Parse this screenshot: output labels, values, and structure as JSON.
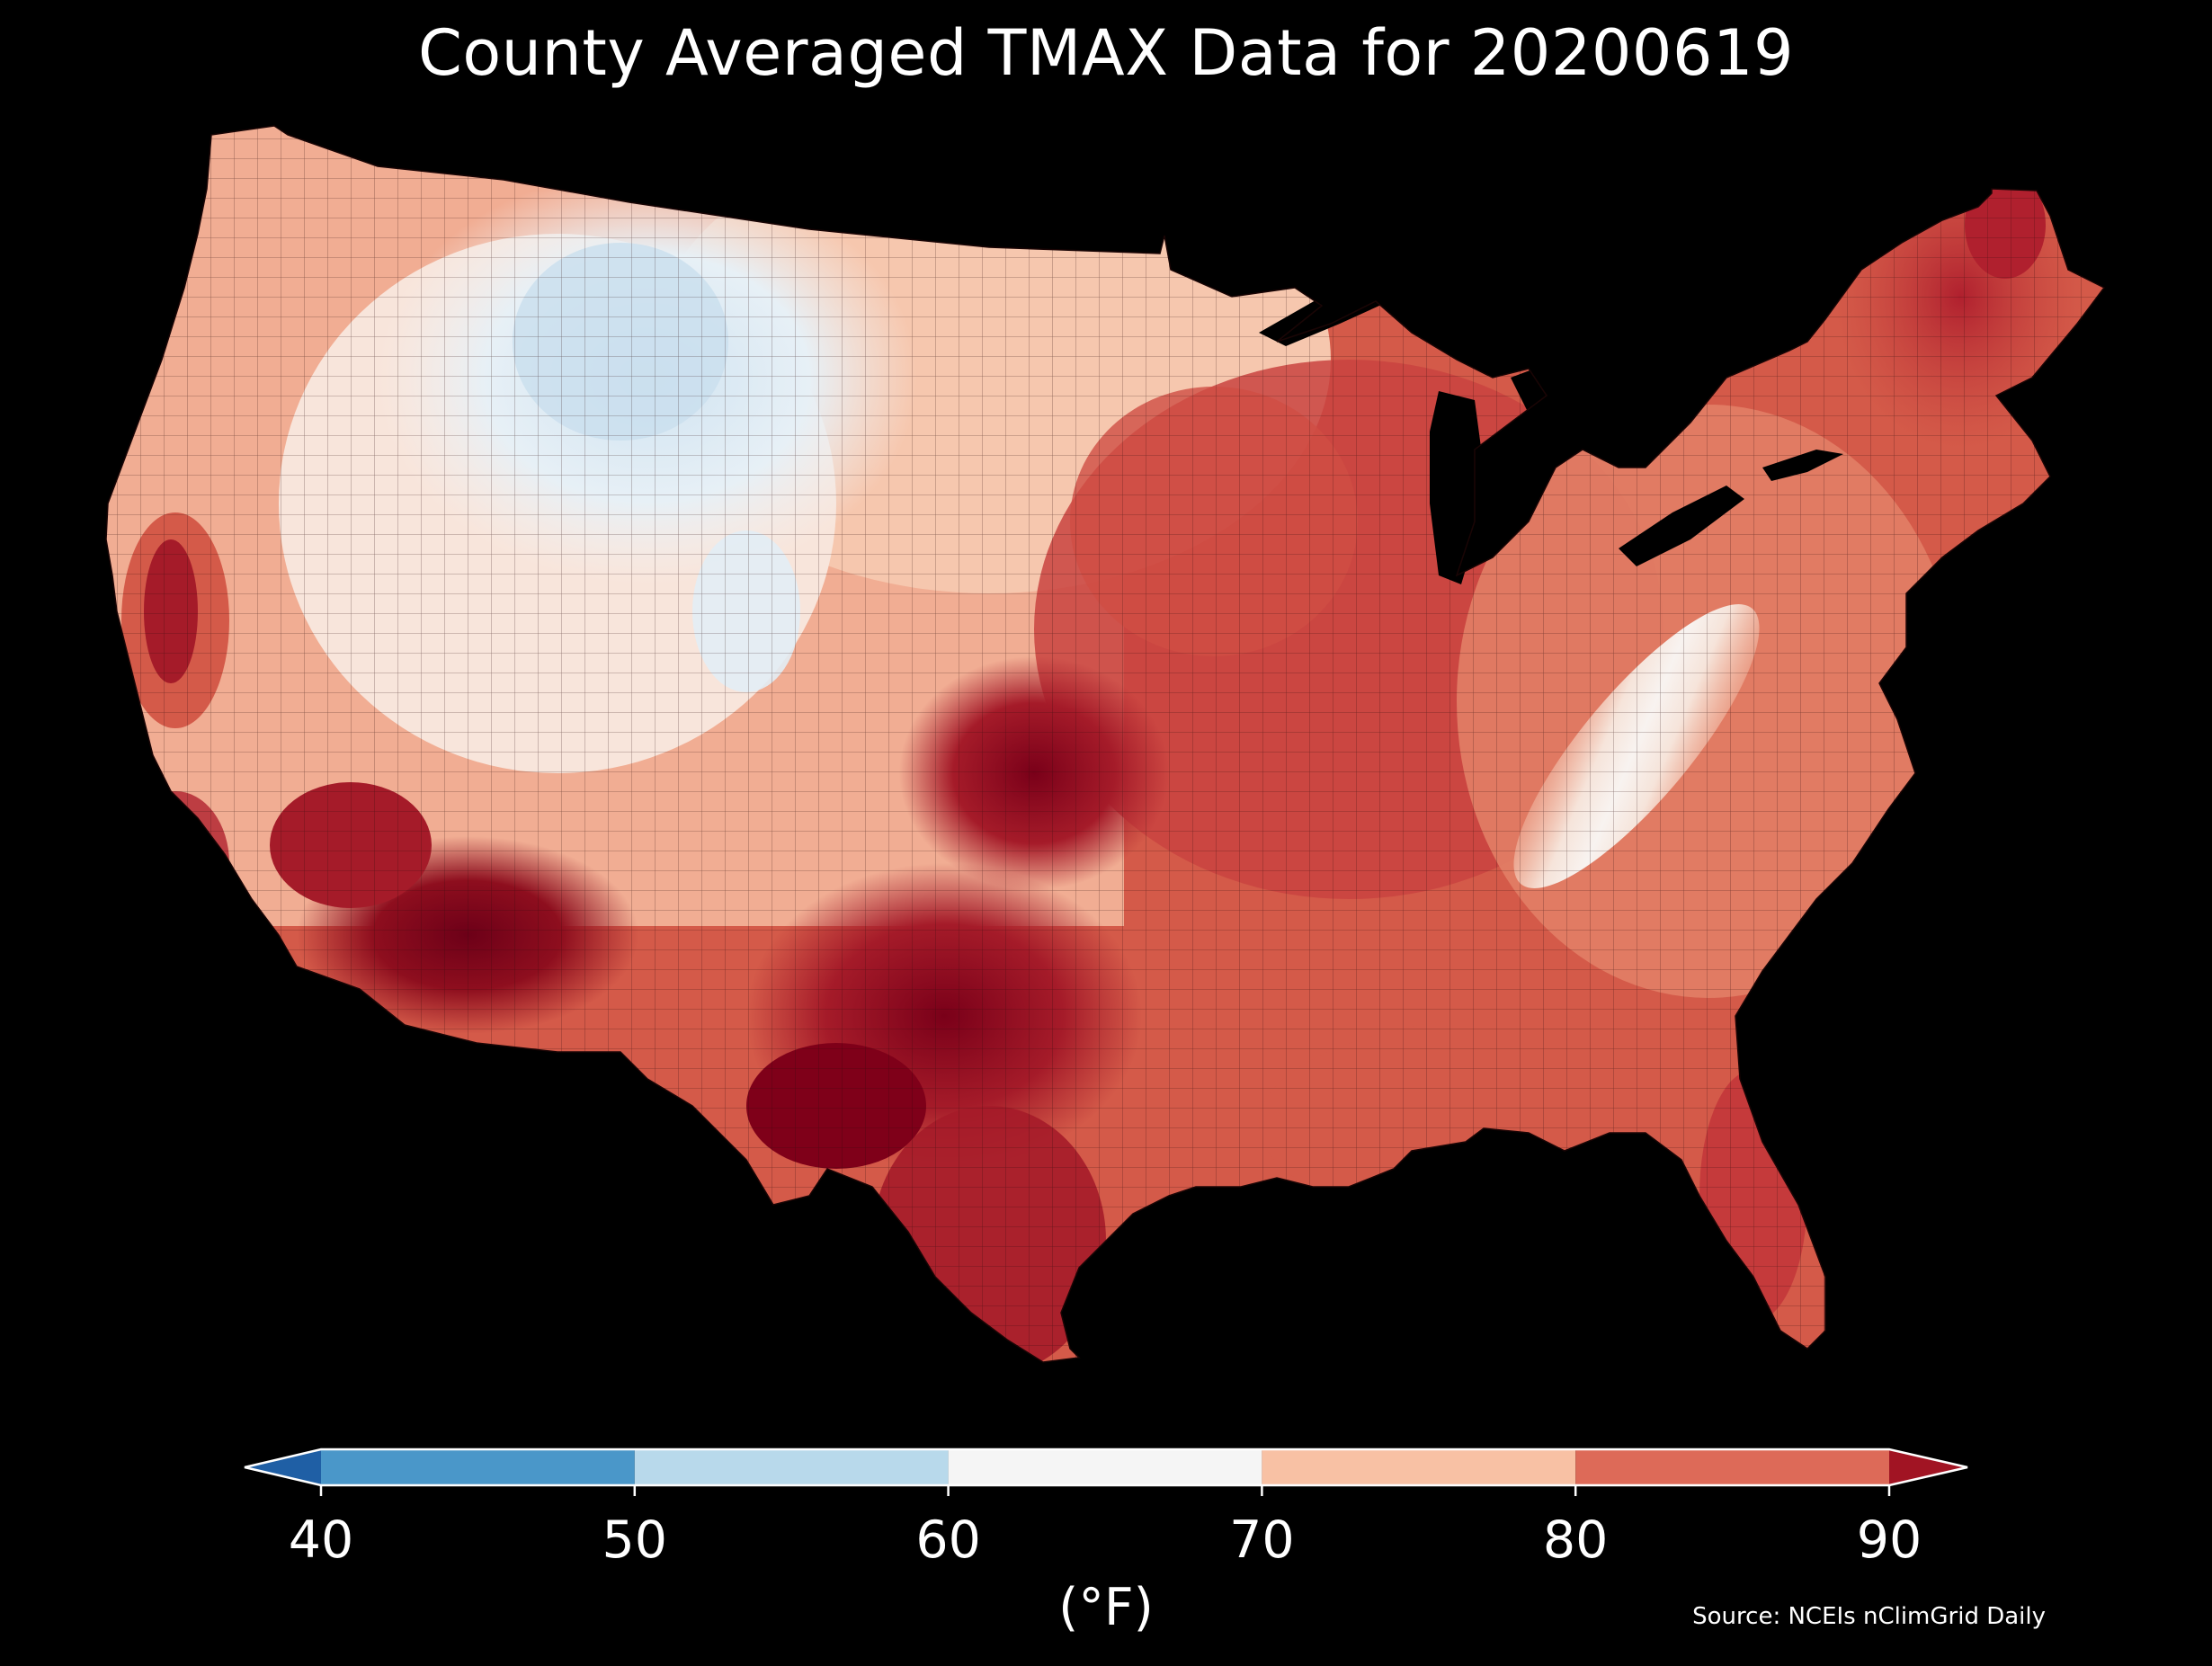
{
  "title": "County Averaged TMAX Data for 20200619",
  "colorbar": {
    "ticks": [
      "40",
      "50",
      "60",
      "70",
      "80",
      "90"
    ],
    "units": "(°F)",
    "bins": [
      {
        "from": 40,
        "to": 50,
        "color": "#4a97c9"
      },
      {
        "from": 50,
        "to": 60,
        "color": "#b8d9eb"
      },
      {
        "from": 60,
        "to": 70,
        "color": "#f5f5f5"
      },
      {
        "from": 70,
        "to": 80,
        "color": "#f8c1a4"
      },
      {
        "from": 80,
        "to": 90,
        "color": "#dd6a58"
      }
    ],
    "under_color": "#1f5fa5",
    "over_color": "#a11423"
  },
  "source": "Source: NCEIs nClimGrid Daily",
  "map": {
    "region": "Contiguous United States",
    "variable": "TMAX",
    "date": "20200619",
    "background": "#000000",
    "palette": {
      "cool": "#e3eef6",
      "white": "#f8f3f0",
      "light": "#f7c9b1",
      "mid": "#e48b72",
      "warm": "#d45a49",
      "hot": "#b0202e",
      "vhot": "#8e0e1e",
      "extreme": "#6d0018",
      "county_line": "#3a1010"
    }
  }
}
